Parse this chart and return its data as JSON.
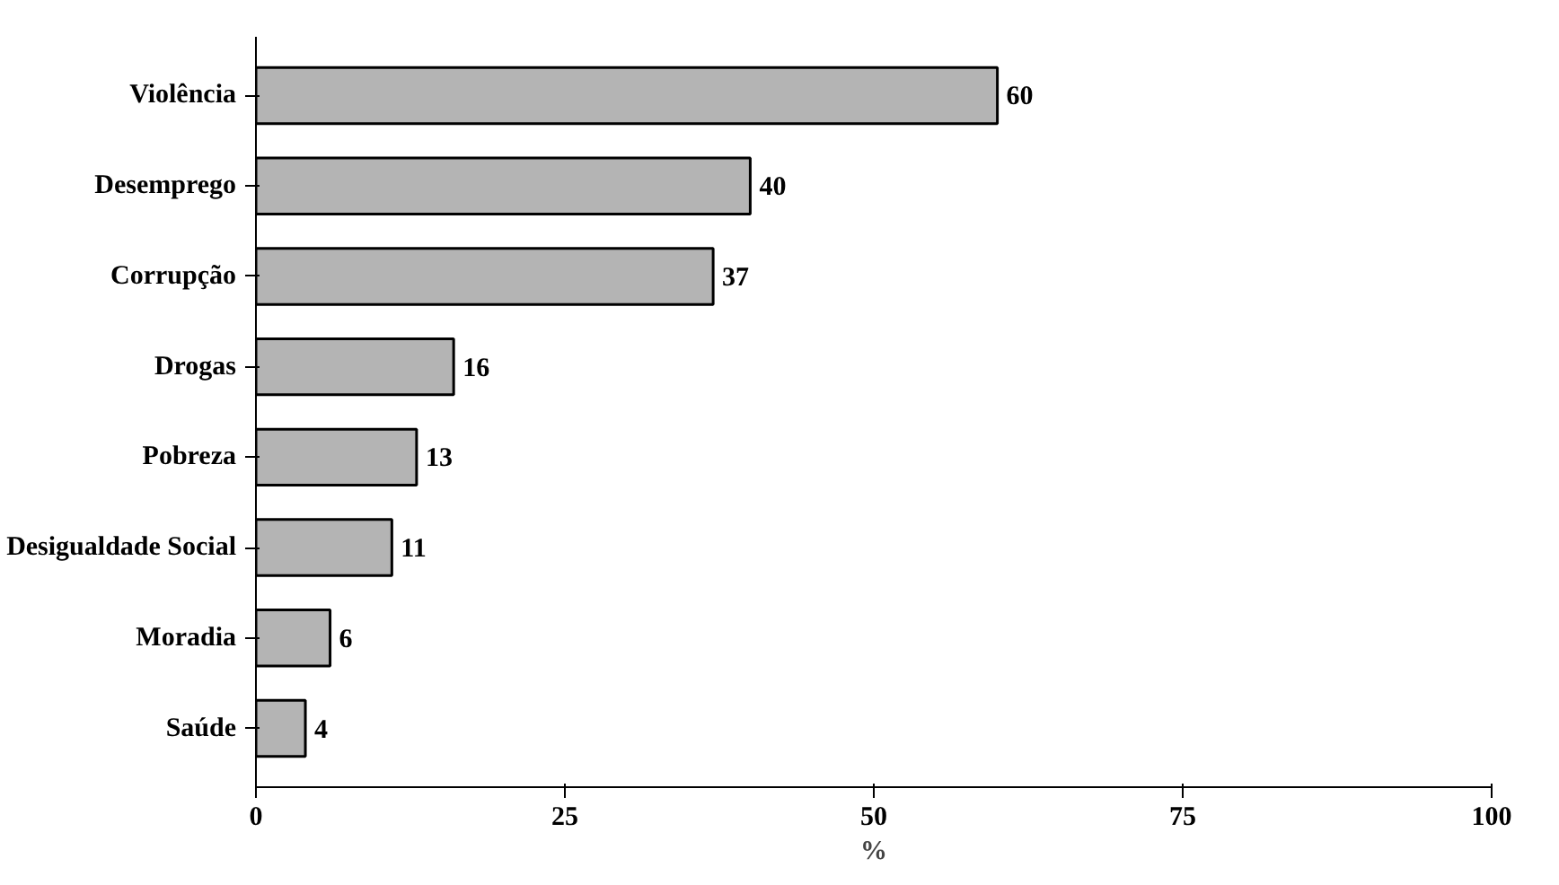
{
  "chart_data": {
    "type": "bar",
    "orientation": "horizontal",
    "xlabel": "%",
    "categories": [
      "Violência",
      "Desemprego",
      "Corrupção",
      "Drogas",
      "Pobreza",
      "Desigualdade Social",
      "Moradia",
      "Saúde"
    ],
    "values": [
      60,
      40,
      37,
      16,
      13,
      11,
      6,
      4
    ],
    "color": "#b4b4b4",
    "xlim": [
      0,
      100
    ],
    "xticks": [
      0,
      25,
      50,
      75,
      100
    ],
    "data_labels": true,
    "grid": false
  }
}
